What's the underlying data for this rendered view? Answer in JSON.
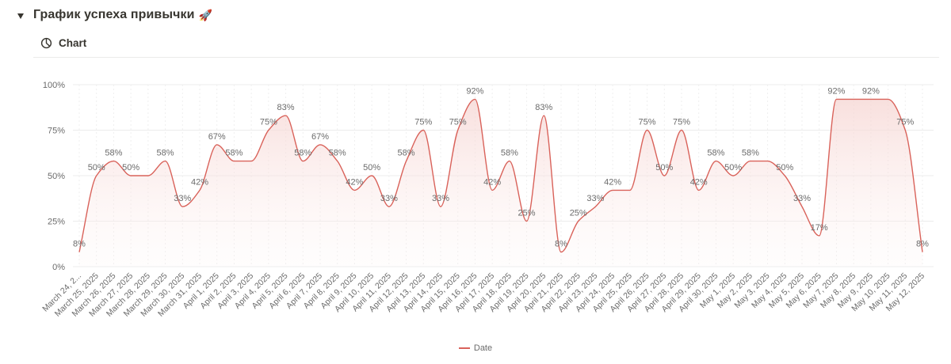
{
  "header": {
    "title": "График успеха привычки",
    "emoji": "🚀",
    "tab_label": "Chart"
  },
  "chart_data": {
    "type": "area",
    "title": "",
    "xlabel": "",
    "ylabel": "",
    "ylim": [
      0,
      100
    ],
    "y_ticks": [
      "0%",
      "25%",
      "50%",
      "75%",
      "100%"
    ],
    "grid": true,
    "legend_position": "bottom",
    "colors": {
      "line": "#d9625a",
      "fill": "#f6d5d2",
      "grid": "#ececec",
      "label": "#6b6b6b"
    },
    "categories": [
      "March 24, 2...",
      "March 25, 2025",
      "March 26, 2025",
      "March 27, 2025",
      "March 28, 2025",
      "March 29, 2025",
      "March 30, 2025",
      "March 31, 2025",
      "April 1, 2025",
      "April 2, 2025",
      "April 3, 2025",
      "April 4, 2025",
      "April 5, 2025",
      "April 6, 2025",
      "April 7, 2025",
      "April 8, 2025",
      "April 9, 2025",
      "April 10, 2025",
      "April 11, 2025",
      "April 12, 2025",
      "April 13, 2025",
      "April 14, 2025",
      "April 15, 2025",
      "April 16, 2025",
      "April 17, 2025",
      "April 18, 2025",
      "April 19, 2025",
      "April 20, 2025",
      "April 21, 2025",
      "April 22, 2025",
      "April 23, 2025",
      "April 24, 2025",
      "April 25, 2025",
      "April 26, 2025",
      "April 27, 2025",
      "April 28, 2025",
      "April 29, 2025",
      "April 30, 2025",
      "May 1, 2025",
      "May 2, 2025",
      "May 3, 2025",
      "May 4, 2025",
      "May 5, 2025",
      "May 6, 2025",
      "May 7, 2025",
      "May 8, 2025",
      "May 9, 2025",
      "May 10, 2025",
      "May 11, 2025",
      "May 12, 2025"
    ],
    "series": [
      {
        "name": "Date",
        "values": [
          8,
          50,
          58,
          50,
          50,
          58,
          33,
          42,
          67,
          58,
          58,
          75,
          83,
          58,
          67,
          58,
          42,
          50,
          33,
          58,
          75,
          33,
          75,
          92,
          42,
          58,
          25,
          83,
          8,
          25,
          33,
          42,
          42,
          75,
          50,
          75,
          42,
          58,
          50,
          58,
          58,
          50,
          33,
          17,
          92,
          92,
          92,
          92,
          75,
          8
        ],
        "labels": [
          "8%",
          "50%",
          "58%",
          "50%",
          "",
          "58%",
          "33%",
          "42%",
          "67%",
          "58%",
          "",
          "75%",
          "83%",
          "58%",
          "67%",
          "58%",
          "42%",
          "50%",
          "33%",
          "58%",
          "75%",
          "33%",
          "75%",
          "92%",
          "42%",
          "58%",
          "25%",
          "83%",
          "8%",
          "25%",
          "33%",
          "42%",
          "",
          "75%",
          "50%",
          "75%",
          "42%",
          "58%",
          "50%",
          "58%",
          "",
          "50%",
          "33%",
          "17%",
          "92%",
          "",
          "92%",
          "",
          "75%",
          "8%"
        ]
      }
    ]
  }
}
